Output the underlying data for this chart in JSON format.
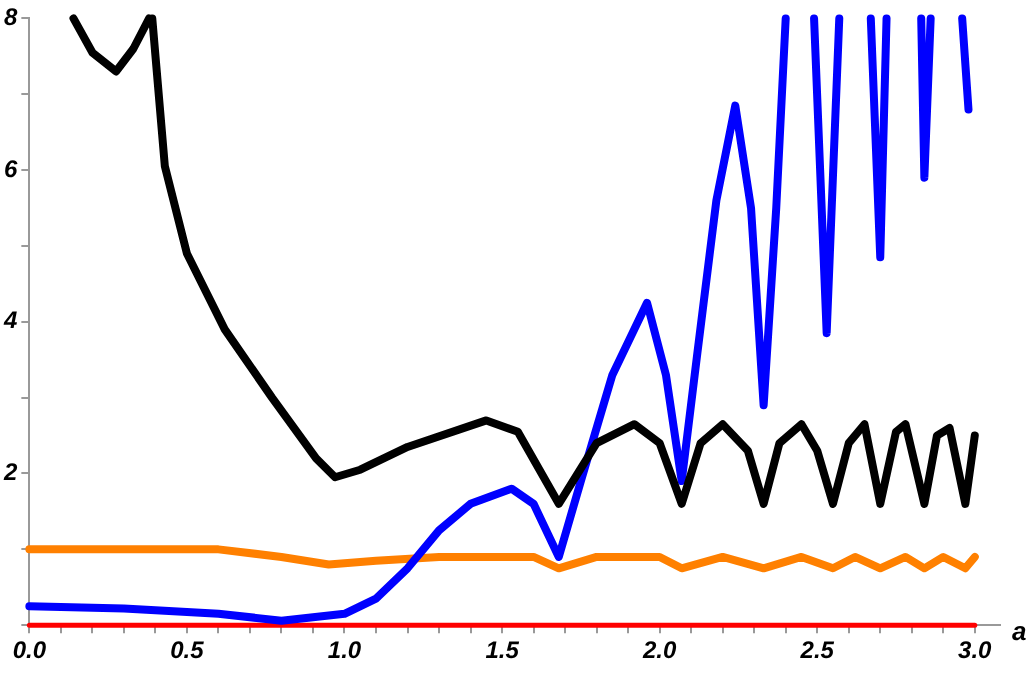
{
  "chart_data": {
    "type": "line",
    "xlabel": "a",
    "xlim": [
      0,
      3.08
    ],
    "ylim": [
      0,
      8
    ],
    "xticks": [
      {
        "value": 0,
        "label": "0.0"
      },
      {
        "value": 0.1,
        "label": null
      },
      {
        "value": 0.2,
        "label": null
      },
      {
        "value": 0.3,
        "label": null
      },
      {
        "value": 0.4,
        "label": null
      },
      {
        "value": 0.5,
        "label": "0.5"
      },
      {
        "value": 0.6,
        "label": null
      },
      {
        "value": 0.7,
        "label": null
      },
      {
        "value": 0.8,
        "label": null
      },
      {
        "value": 0.9,
        "label": null
      },
      {
        "value": 1,
        "label": "1.0"
      },
      {
        "value": 1.1,
        "label": null
      },
      {
        "value": 1.2,
        "label": null
      },
      {
        "value": 1.3,
        "label": null
      },
      {
        "value": 1.4,
        "label": null
      },
      {
        "value": 1.5,
        "label": "1.5"
      },
      {
        "value": 1.6,
        "label": null
      },
      {
        "value": 1.7,
        "label": null
      },
      {
        "value": 1.8,
        "label": null
      },
      {
        "value": 1.9,
        "label": null
      },
      {
        "value": 2,
        "label": "2.0"
      },
      {
        "value": 2.1,
        "label": null
      },
      {
        "value": 2.2,
        "label": null
      },
      {
        "value": 2.3,
        "label": null
      },
      {
        "value": 2.4,
        "label": null
      },
      {
        "value": 2.5,
        "label": "2.5"
      },
      {
        "value": 2.6,
        "label": null
      },
      {
        "value": 2.7,
        "label": null
      },
      {
        "value": 2.8,
        "label": null
      },
      {
        "value": 2.9,
        "label": null
      },
      {
        "value": 3,
        "label": "3.0"
      }
    ],
    "yticks": [
      {
        "value": 0,
        "label": null
      },
      {
        "value": 1,
        "label": null
      },
      2,
      {
        "value": 3,
        "label": null
      },
      4,
      {
        "value": 5,
        "label": null
      },
      6,
      {
        "value": 7,
        "label": null
      },
      8
    ],
    "grid": false,
    "legend": false,
    "marker": "none",
    "line_style": "solid",
    "series": [
      {
        "color": "#000000",
        "x": [
          0.14,
          0.2,
          0.275,
          0.33,
          0.38,
          0.385,
          0.39,
          0.43,
          0.5,
          0.62,
          0.77,
          0.91,
          0.97,
          1.05,
          1.2,
          1.45,
          1.55,
          1.68,
          1.8,
          1.92,
          2.0,
          2.07,
          2.13,
          2.2,
          2.28,
          2.33,
          2.38,
          2.45,
          2.5,
          2.55,
          2.6,
          2.65,
          2.7,
          2.75,
          2.78,
          2.84,
          2.88,
          2.92,
          2.97,
          3.0
        ],
        "values": [
          8,
          7.55,
          7.3,
          7.6,
          8,
          null,
          8,
          6.05,
          4.9,
          3.9,
          3.0,
          2.2,
          1.95,
          2.05,
          2.35,
          2.7,
          2.55,
          1.6,
          2.4,
          2.65,
          2.4,
          1.6,
          2.4,
          2.65,
          2.3,
          1.6,
          2.4,
          2.65,
          2.3,
          1.6,
          2.4,
          2.65,
          1.6,
          2.55,
          2.65,
          1.6,
          2.5,
          2.6,
          1.6,
          2.5
        ]
      },
      {
        "color": "#0000ff",
        "x": [
          0,
          0.3,
          0.6,
          0.8,
          1.0,
          1.1,
          1.2,
          1.3,
          1.4,
          1.53,
          1.6,
          1.68,
          1.75,
          1.85,
          1.96,
          2.02,
          2.07,
          2.12,
          2.18,
          2.24,
          2.29,
          2.33,
          2.37,
          2.4,
          2.45,
          2.49,
          2.53,
          2.57,
          2.62,
          2.67,
          2.7,
          2.72,
          2.77,
          2.83,
          2.84,
          2.86,
          2.92,
          2.96,
          2.98
        ],
        "values": [
          0.25,
          0.22,
          0.15,
          0.06,
          0.15,
          0.35,
          0.75,
          1.25,
          1.6,
          1.8,
          1.6,
          0.9,
          1.9,
          3.3,
          4.25,
          3.3,
          1.9,
          3.6,
          5.6,
          6.85,
          5.5,
          2.9,
          5.5,
          8,
          null,
          8,
          3.85,
          8,
          null,
          8,
          4.85,
          8,
          null,
          8,
          5.9,
          8,
          null,
          8,
          6.8
        ]
      },
      {
        "color": "#ff8000",
        "x": [
          0,
          0.3,
          0.6,
          0.8,
          0.95,
          1.1,
          1.3,
          1.6,
          1.68,
          1.8,
          2.0,
          2.07,
          2.2,
          2.33,
          2.45,
          2.55,
          2.62,
          2.7,
          2.78,
          2.84,
          2.9,
          2.97,
          3.0
        ],
        "values": [
          1.0,
          1.0,
          1.0,
          0.9,
          0.8,
          0.85,
          0.9,
          0.9,
          0.75,
          0.9,
          0.9,
          0.75,
          0.9,
          0.75,
          0.9,
          0.75,
          0.9,
          0.75,
          0.9,
          0.75,
          0.9,
          0.75,
          0.9
        ]
      },
      {
        "color": "#ff0000",
        "x": [
          0,
          3.0
        ],
        "values": [
          0,
          0
        ]
      }
    ]
  }
}
